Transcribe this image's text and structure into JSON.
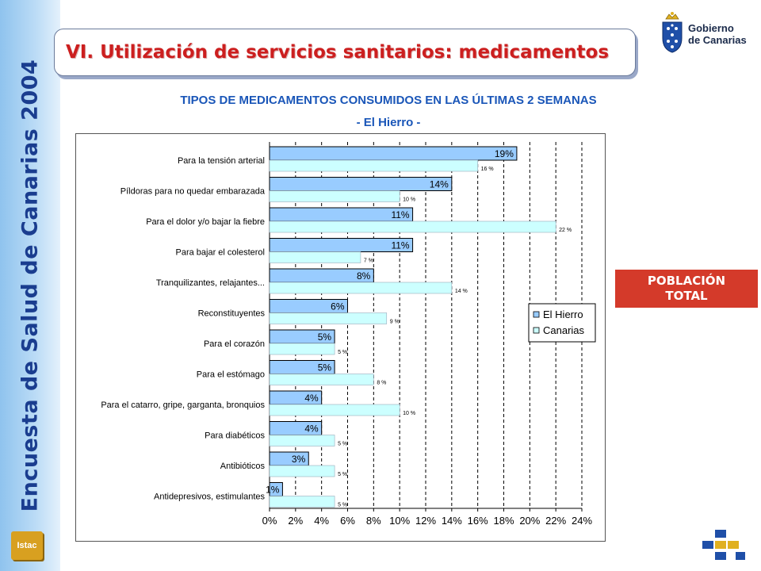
{
  "sidebar": {
    "title": "Encuesta de Salud de Canarias 2004",
    "logo_text": "Istac"
  },
  "header": {
    "title": "VI. Utilización de servicios sanitarios: medicamentos"
  },
  "logo": {
    "line1": "Gobierno",
    "line2": "de Canarias"
  },
  "badge": {
    "line1": "POBLACIÓN",
    "line2": "TOTAL"
  },
  "colors": {
    "series1_fill": "#99ccff",
    "series2_fill": "#ccffff",
    "title_blue": "#1a56b8",
    "header_red": "#cc1f1f",
    "badge_red": "#d43a2a"
  },
  "chart_data": {
    "type": "bar",
    "orientation": "horizontal",
    "title": "TIPOS DE MEDICAMENTOS CONSUMIDOS EN LAS ÚLTIMAS 2 SEMANAS",
    "subtitle": "- El Hierro -",
    "categories": [
      "Para la tensión arterial",
      "Píldoras para no quedar embarazada",
      "Para el dolor y/o bajar la fiebre",
      "Para bajar el colesterol",
      "Tranquilizantes, relajantes...",
      "Reconstituyentes",
      "Para el corazón",
      "Para el estómago",
      "Para el catarro, gripe, garganta, bronquios",
      "Para diabéticos",
      "Antibióticos",
      "Antidepresivos, estimulantes"
    ],
    "series": [
      {
        "name": "El Hierro",
        "values": [
          19,
          14,
          11,
          11,
          8,
          6,
          5,
          5,
          4,
          4,
          3,
          1
        ],
        "labels": [
          "19%",
          "14%",
          "11%",
          "11%",
          "8%",
          "6%",
          "5%",
          "5%",
          "4%",
          "4%",
          "3%",
          "1%"
        ]
      },
      {
        "name": "Canarias",
        "values": [
          16,
          10,
          22,
          7,
          14,
          9,
          5,
          8,
          10,
          5,
          5,
          5
        ],
        "labels": [
          "16 %",
          "10 %",
          "22 %",
          "7 %",
          "14 %",
          "9 %",
          "5 %",
          "8 %",
          "10 %",
          "5 %",
          "5 %",
          "5 %"
        ]
      }
    ],
    "x_ticks": [
      "0%",
      "2%",
      "4%",
      "6%",
      "8%",
      "10%",
      "12%",
      "14%",
      "16%",
      "18%",
      "20%",
      "22%",
      "24%"
    ],
    "xlim": [
      0,
      24
    ],
    "grid": "vertical dashed",
    "legend": "right"
  }
}
